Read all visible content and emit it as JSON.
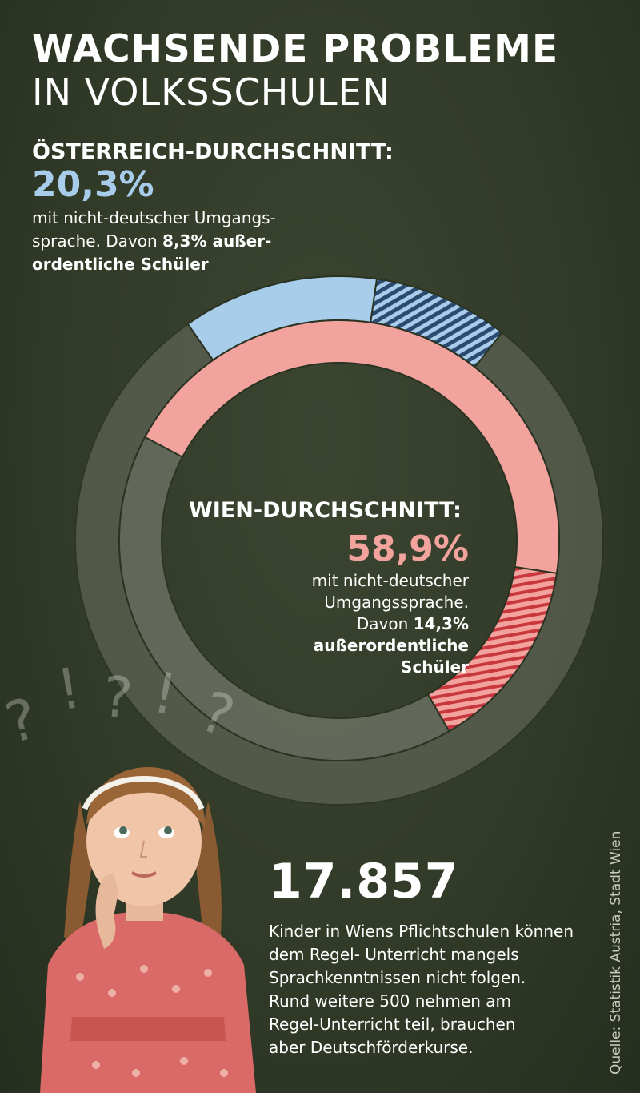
{
  "header": {
    "title_line1": "WACHSENDE PROBLEME",
    "title_line2": "IN VOLKSSCHULEN"
  },
  "austria": {
    "label": "ÖSTERREICH-DURCHSCHNITT:",
    "percent": "20,3%",
    "desc_line1": "mit nicht-deutscher Umgangs-",
    "desc_line2_pre": "sprache. Davon ",
    "desc_line2_bold": "8,3% außer-",
    "desc_line3_bold": "ordentliche Schüler"
  },
  "vienna": {
    "label": "WIEN-DURCHSCHNITT:",
    "percent": "58,9%",
    "desc_line1": "mit nicht-deutscher",
    "desc_line2": "Umgangssprache.",
    "desc_line3_pre": "Davon ",
    "desc_line3_bold": "14,3%",
    "desc_line4_bold": "außerordentliche",
    "desc_line5_bold": "Schüler"
  },
  "kids": {
    "number": "17.857",
    "desc_line1": "Kinder in Wiens Pflichtschulen können",
    "desc_line2": "dem Regel- Unterricht mangels",
    "desc_line3": "Sprachkenntnissen nicht folgen.",
    "desc_line4": "Rund weitere 500 nehmen am",
    "desc_line5": "Regel-Unterricht teil, brauchen",
    "desc_line6": "aber Deutschförderkurse."
  },
  "source": "Quelle: Statistik Austria, Stadt Wien",
  "colors": {
    "background": "#343d2a",
    "austria_blue": "#a8cdea",
    "vienna_red": "#f2a39e",
    "ring_gray": "#6b7062",
    "hatch_navy": "#2c4a70",
    "hatch_red": "#c7373d"
  },
  "chart_data": {
    "type": "donut",
    "rings": [
      {
        "name": "ÖSTERREICH-DURCHSCHNITT:",
        "segments": [
          {
            "label": "mit nicht-deutscher Umgangssprache",
            "value": 12.0,
            "color": "#a8cdea",
            "pattern": "solid"
          },
          {
            "label": "außerordentliche Schüler",
            "value": 8.3,
            "color": "#a8cdea",
            "pattern": "hatched"
          },
          {
            "label": "other",
            "value": 79.7,
            "color": "#6b7062",
            "pattern": "solid"
          }
        ],
        "total_highlight": 20.3
      },
      {
        "name": "WIEN-DURCHSCHNITT:",
        "segments": [
          {
            "label": "mit nicht-deutscher Umgangssprache",
            "value": 44.6,
            "color": "#f2a39e",
            "pattern": "solid"
          },
          {
            "label": "außerordentliche Schüler",
            "value": 14.3,
            "color": "#f2a39e",
            "pattern": "hatched"
          },
          {
            "label": "other",
            "value": 41.1,
            "color": "#6b7062",
            "pattern": "solid"
          }
        ],
        "total_highlight": 58.9
      }
    ]
  }
}
